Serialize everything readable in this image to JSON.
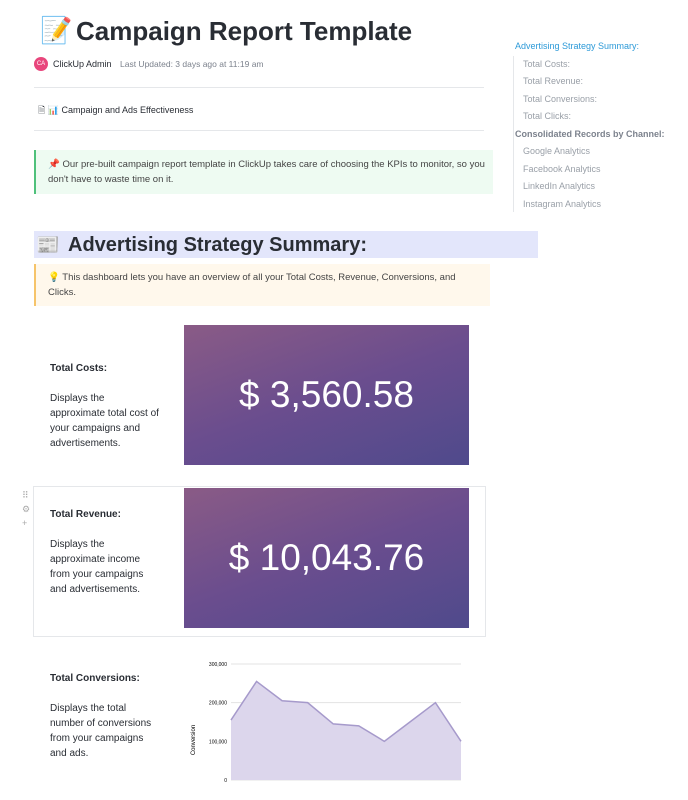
{
  "header": {
    "title": "Campaign Report Template",
    "avatar": "CA",
    "author": "ClickUp Admin",
    "updated": "Last Updated: 3 days ago at 11:19 am"
  },
  "page_link": "Campaign and Ads Effectiveness",
  "intro_callout": "Our pre-built campaign report template in ClickUp takes care of choosing the KPIs to monitor, so you don't have to waste time on it.",
  "toc": [
    "Advertising Strategy Summary:",
    "Total Costs:",
    "Total Revenue:",
    "Total Conversions:",
    "Total Clicks:",
    "Consolidated Records by Channel:",
    "Google Analytics",
    "Facebook Analytics",
    "LinkedIn Analytics",
    "Instagram Analytics"
  ],
  "section": {
    "heading": "Advertising Strategy Summary:",
    "callout": "This dashboard lets you have an overview of all your Total Costs, Revenue, Conversions, and Clicks."
  },
  "cards": [
    {
      "title": "Total Costs:",
      "description": "Displays the approximate total cost of your campaigns and advertisements.",
      "value": "$ 3,560.58"
    },
    {
      "title": "Total Revenue:",
      "description": "Displays the approximate income from your campaigns and advertisements.",
      "value": "$ 10,043.76"
    },
    {
      "title": "Total Conversions:",
      "description": "Displays the total number of conversions from your campaigns and ads."
    }
  ],
  "chart_data": {
    "type": "area",
    "y_label": "Conversion",
    "categories": [
      null,
      null,
      null,
      null,
      null,
      null,
      null,
      null,
      null,
      null
    ],
    "values": [
      155000,
      255000,
      205000,
      200000,
      145000,
      140000,
      100000,
      150000,
      200000,
      100000
    ],
    "color": "#dcd6ec",
    "line_color": "#a69acb",
    "ylim": [
      0,
      300000
    ],
    "yticks": [
      0,
      {
        "value": 100000,
        "label": "100,000"
      },
      {
        "value": 200000,
        "label": "200,000"
      },
      {
        "value": 300000,
        "label": "300,000"
      }
    ],
    "grid": true
  }
}
